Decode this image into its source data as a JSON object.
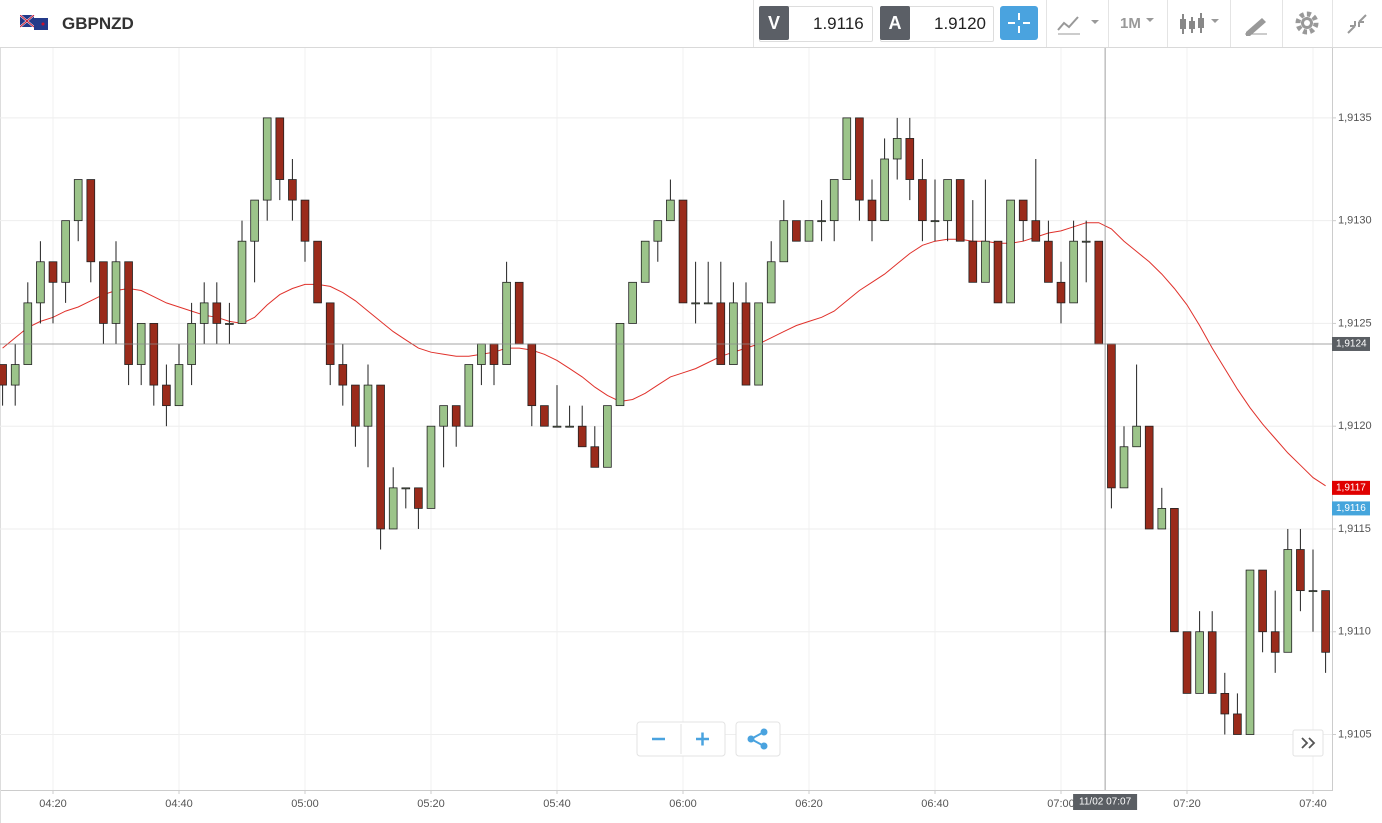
{
  "header": {
    "symbol": "GBPNZD",
    "sell_label": "V",
    "sell_price": "1.9116",
    "buy_label": "A",
    "buy_price": "1.9120",
    "timeframe": "1M"
  },
  "chart_data": {
    "type": "candlestick",
    "categories": [
      null,
      null,
      null,
      null,
      "04:20",
      null,
      null,
      null,
      null,
      null,
      null,
      null,
      null,
      null,
      "04:40",
      null,
      null,
      null,
      null,
      null,
      null,
      null,
      null,
      null,
      "05:00",
      null,
      null,
      null,
      null,
      null,
      null,
      null,
      null,
      null,
      "05:20",
      null,
      null,
      null,
      null,
      null,
      null,
      null,
      null,
      null,
      "05:40",
      null,
      null,
      null,
      null,
      null,
      null,
      null,
      null,
      null,
      "06:00",
      null,
      null,
      null,
      null,
      null,
      null,
      null,
      null,
      null,
      "06:20",
      null,
      null,
      null,
      null,
      null,
      null,
      null,
      null,
      null,
      "06:40",
      null,
      null,
      null,
      null,
      null,
      null,
      null,
      null,
      null,
      "07:00",
      null,
      null,
      null,
      null,
      null,
      null,
      null,
      null,
      null,
      "07:20",
      null,
      null,
      null,
      null,
      null,
      null,
      null,
      null,
      null,
      "07:40",
      null
    ],
    "ohlc": [
      [
        1.9123,
        1.9123,
        1.9121,
        1.9122
      ],
      [
        1.9122,
        1.9124,
        1.9121,
        1.9123
      ],
      [
        1.9123,
        1.9127,
        1.9123,
        1.9126
      ],
      [
        1.9126,
        1.9129,
        1.9125,
        1.9128
      ],
      [
        1.9128,
        1.9128,
        1.9125,
        1.9127
      ],
      [
        1.9127,
        1.913,
        1.9126,
        1.913
      ],
      [
        1.913,
        1.9132,
        1.9129,
        1.9132
      ],
      [
        1.9132,
        1.9132,
        1.9127,
        1.9128
      ],
      [
        1.9128,
        1.9128,
        1.9124,
        1.9125
      ],
      [
        1.9125,
        1.9129,
        1.9124,
        1.9128
      ],
      [
        1.9128,
        1.9128,
        1.9122,
        1.9123
      ],
      [
        1.9123,
        1.9125,
        1.9122,
        1.9125
      ],
      [
        1.9125,
        1.9125,
        1.9121,
        1.9122
      ],
      [
        1.9122,
        1.9123,
        1.912,
        1.9121
      ],
      [
        1.9121,
        1.9124,
        1.9121,
        1.9123
      ],
      [
        1.9123,
        1.9126,
        1.9122,
        1.9125
      ],
      [
        1.9125,
        1.9127,
        1.9124,
        1.9126
      ],
      [
        1.9126,
        1.9127,
        1.9124,
        1.9125
      ],
      [
        1.9125,
        1.9126,
        1.9124,
        1.9125
      ],
      [
        1.9125,
        1.913,
        1.9125,
        1.9129
      ],
      [
        1.9129,
        1.9131,
        1.9127,
        1.9131
      ],
      [
        1.9131,
        1.9135,
        1.913,
        1.9135
      ],
      [
        1.9135,
        1.9135,
        1.9131,
        1.9132
      ],
      [
        1.9132,
        1.9133,
        1.913,
        1.9131
      ],
      [
        1.9131,
        1.9131,
        1.9128,
        1.9129
      ],
      [
        1.9129,
        1.9129,
        1.9126,
        1.9126
      ],
      [
        1.9126,
        1.9126,
        1.9122,
        1.9123
      ],
      [
        1.9123,
        1.9124,
        1.9121,
        1.9122
      ],
      [
        1.9122,
        1.9122,
        1.9119,
        1.912
      ],
      [
        1.912,
        1.9123,
        1.9118,
        1.9122
      ],
      [
        1.9122,
        1.9122,
        1.9114,
        1.9115
      ],
      [
        1.9115,
        1.9118,
        1.9115,
        1.9117
      ],
      [
        1.9117,
        1.9117,
        1.9116,
        1.9117
      ],
      [
        1.9117,
        1.9117,
        1.9115,
        1.9116
      ],
      [
        1.9116,
        1.912,
        1.9116,
        1.912
      ],
      [
        1.912,
        1.9121,
        1.9118,
        1.9121
      ],
      [
        1.9121,
        1.9121,
        1.9119,
        1.912
      ],
      [
        1.912,
        1.9123,
        1.912,
        1.9123
      ],
      [
        1.9123,
        1.9124,
        1.9122,
        1.9124
      ],
      [
        1.9124,
        1.9124,
        1.9122,
        1.9123
      ],
      [
        1.9123,
        1.9128,
        1.9123,
        1.9127
      ],
      [
        1.9127,
        1.9127,
        1.9124,
        1.9124
      ],
      [
        1.9124,
        1.9124,
        1.912,
        1.9121
      ],
      [
        1.9121,
        1.9121,
        1.912,
        1.912
      ],
      [
        1.912,
        1.9122,
        1.912,
        1.912
      ],
      [
        1.912,
        1.9121,
        1.912,
        1.912
      ],
      [
        1.912,
        1.9121,
        1.9119,
        1.9119
      ],
      [
        1.9119,
        1.912,
        1.9118,
        1.9118
      ],
      [
        1.9118,
        1.9121,
        1.9118,
        1.9121
      ],
      [
        1.9121,
        1.9125,
        1.9121,
        1.9125
      ],
      [
        1.9125,
        1.9127,
        1.9125,
        1.9127
      ],
      [
        1.9127,
        1.9129,
        1.9127,
        1.9129
      ],
      [
        1.9129,
        1.913,
        1.9128,
        1.913
      ],
      [
        1.913,
        1.9132,
        1.913,
        1.9131
      ],
      [
        1.9131,
        1.9131,
        1.9126,
        1.9126
      ],
      [
        1.9126,
        1.9128,
        1.9125,
        1.9126
      ],
      [
        1.9126,
        1.9128,
        1.9126,
        1.9126
      ],
      [
        1.9126,
        1.9128,
        1.9123,
        1.9123
      ],
      [
        1.9123,
        1.9127,
        1.9123,
        1.9126
      ],
      [
        1.9126,
        1.9127,
        1.9122,
        1.9122
      ],
      [
        1.9122,
        1.9126,
        1.9122,
        1.9126
      ],
      [
        1.9126,
        1.9129,
        1.9126,
        1.9128
      ],
      [
        1.9128,
        1.9131,
        1.9128,
        1.913
      ],
      [
        1.913,
        1.913,
        1.9129,
        1.9129
      ],
      [
        1.9129,
        1.913,
        1.9129,
        1.913
      ],
      [
        1.913,
        1.9131,
        1.9129,
        1.913
      ],
      [
        1.913,
        1.9132,
        1.9129,
        1.9132
      ],
      [
        1.9132,
        1.9135,
        1.9132,
        1.9135
      ],
      [
        1.9135,
        1.9135,
        1.913,
        1.9131
      ],
      [
        1.9131,
        1.9132,
        1.9129,
        1.913
      ],
      [
        1.913,
        1.9134,
        1.913,
        1.9133
      ],
      [
        1.9133,
        1.9135,
        1.9132,
        1.9134
      ],
      [
        1.9134,
        1.9135,
        1.9131,
        1.9132
      ],
      [
        1.9132,
        1.9133,
        1.9129,
        1.913
      ],
      [
        1.913,
        1.9132,
        1.9129,
        1.913
      ],
      [
        1.913,
        1.9132,
        1.9129,
        1.9132
      ],
      [
        1.9132,
        1.9132,
        1.9129,
        1.9129
      ],
      [
        1.9129,
        1.9131,
        1.9127,
        1.9127
      ],
      [
        1.9127,
        1.9132,
        1.9127,
        1.9129
      ],
      [
        1.9129,
        1.9129,
        1.9126,
        1.9126
      ],
      [
        1.9126,
        1.9131,
        1.9126,
        1.9131
      ],
      [
        1.9131,
        1.9131,
        1.9129,
        1.913
      ],
      [
        1.913,
        1.9133,
        1.9129,
        1.9129
      ],
      [
        1.9129,
        1.913,
        1.9127,
        1.9127
      ],
      [
        1.9127,
        1.9128,
        1.9125,
        1.9126
      ],
      [
        1.9126,
        1.913,
        1.9126,
        1.9129
      ],
      [
        1.9129,
        1.913,
        1.9127,
        1.9129
      ],
      [
        1.9129,
        1.9129,
        1.9124,
        1.9124
      ],
      [
        1.9124,
        1.9124,
        1.9116,
        1.9117
      ],
      [
        1.9117,
        1.912,
        1.9117,
        1.9119
      ],
      [
        1.9119,
        1.9123,
        1.9119,
        1.912
      ],
      [
        1.912,
        1.912,
        1.9115,
        1.9115
      ],
      [
        1.9115,
        1.9117,
        1.9115,
        1.9116
      ],
      [
        1.9116,
        1.9116,
        1.911,
        1.911
      ],
      [
        1.911,
        1.911,
        1.9107,
        1.9107
      ],
      [
        1.9107,
        1.9111,
        1.9107,
        1.911
      ],
      [
        1.911,
        1.9111,
        1.9107,
        1.9107
      ],
      [
        1.9107,
        1.9108,
        1.9105,
        1.9106
      ],
      [
        1.9106,
        1.9107,
        1.9105,
        1.9105
      ],
      [
        1.9105,
        1.9113,
        1.9105,
        1.9113
      ],
      [
        1.9113,
        1.9113,
        1.9109,
        1.911
      ],
      [
        1.911,
        1.9112,
        1.9108,
        1.9109
      ],
      [
        1.9109,
        1.9115,
        1.9109,
        1.9114
      ],
      [
        1.9114,
        1.9115,
        1.9111,
        1.9112
      ],
      [
        1.9112,
        1.9114,
        1.911,
        1.9112
      ],
      [
        1.9112,
        1.9112,
        1.9108,
        1.9109
      ]
    ],
    "up_color": "#9cc48a",
    "down_color": "#9a2b1b",
    "ma": {
      "color": "#e0312b",
      "values": [
        1.91238,
        1.91243,
        1.91248,
        1.91251,
        1.91253,
        1.91256,
        1.91258,
        1.91261,
        1.91264,
        1.91266,
        1.91267,
        1.91266,
        1.91263,
        1.9126,
        1.91258,
        1.91256,
        1.91254,
        1.91253,
        1.91251,
        1.9125,
        1.91253,
        1.91259,
        1.91264,
        1.91267,
        1.91269,
        1.91269,
        1.91268,
        1.91265,
        1.91261,
        1.91256,
        1.91251,
        1.91246,
        1.91242,
        1.91238,
        1.91236,
        1.91235,
        1.91234,
        1.91234,
        1.91235,
        1.91236,
        1.91238,
        1.91238,
        1.91237,
        1.91235,
        1.91232,
        1.91228,
        1.91224,
        1.91219,
        1.91215,
        1.91212,
        1.91213,
        1.91216,
        1.9122,
        1.91224,
        1.91226,
        1.91228,
        1.91231,
        1.91234,
        1.91236,
        1.91238,
        1.9124,
        1.91243,
        1.91246,
        1.91249,
        1.91251,
        1.91253,
        1.91256,
        1.91261,
        1.91266,
        1.9127,
        1.91274,
        1.91279,
        1.91284,
        1.91288,
        1.9129,
        1.91291,
        1.91291,
        1.9129,
        1.9129,
        1.91289,
        1.91289,
        1.9129,
        1.91292,
        1.91294,
        1.91295,
        1.91297,
        1.91299,
        1.91299,
        1.91296,
        1.9129,
        1.91285,
        1.9128,
        1.91274,
        1.91267,
        1.91259,
        1.91249,
        1.91238,
        1.91228,
        1.91218,
        1.91209,
        1.91201,
        1.91194,
        1.91187,
        1.91181,
        1.91175,
        1.91171
      ]
    },
    "ylim": [
      1.91023,
      1.91384
    ],
    "yticks": [
      {
        "value": 1.9105,
        "label": "1,9105"
      },
      {
        "value": 1.911,
        "label": "1,9110"
      },
      {
        "value": 1.9115,
        "label": "1,9115"
      },
      {
        "value": 1.912,
        "label": "1,9120"
      },
      {
        "value": 1.9125,
        "label": "1,9125"
      },
      {
        "value": 1.913,
        "label": "1,9130"
      },
      {
        "value": 1.9135,
        "label": "1,9135"
      }
    ],
    "grid": true,
    "crosshair": {
      "time_label": "11/02 07:07",
      "price": {
        "value": 1.9124,
        "label": "1,9124"
      }
    },
    "price_tags": [
      {
        "value": 1.9117,
        "label": "1,9117",
        "color": "#e00000"
      },
      {
        "value": 1.9116,
        "label": "1,9116",
        "color": "#45a5dc"
      }
    ]
  }
}
